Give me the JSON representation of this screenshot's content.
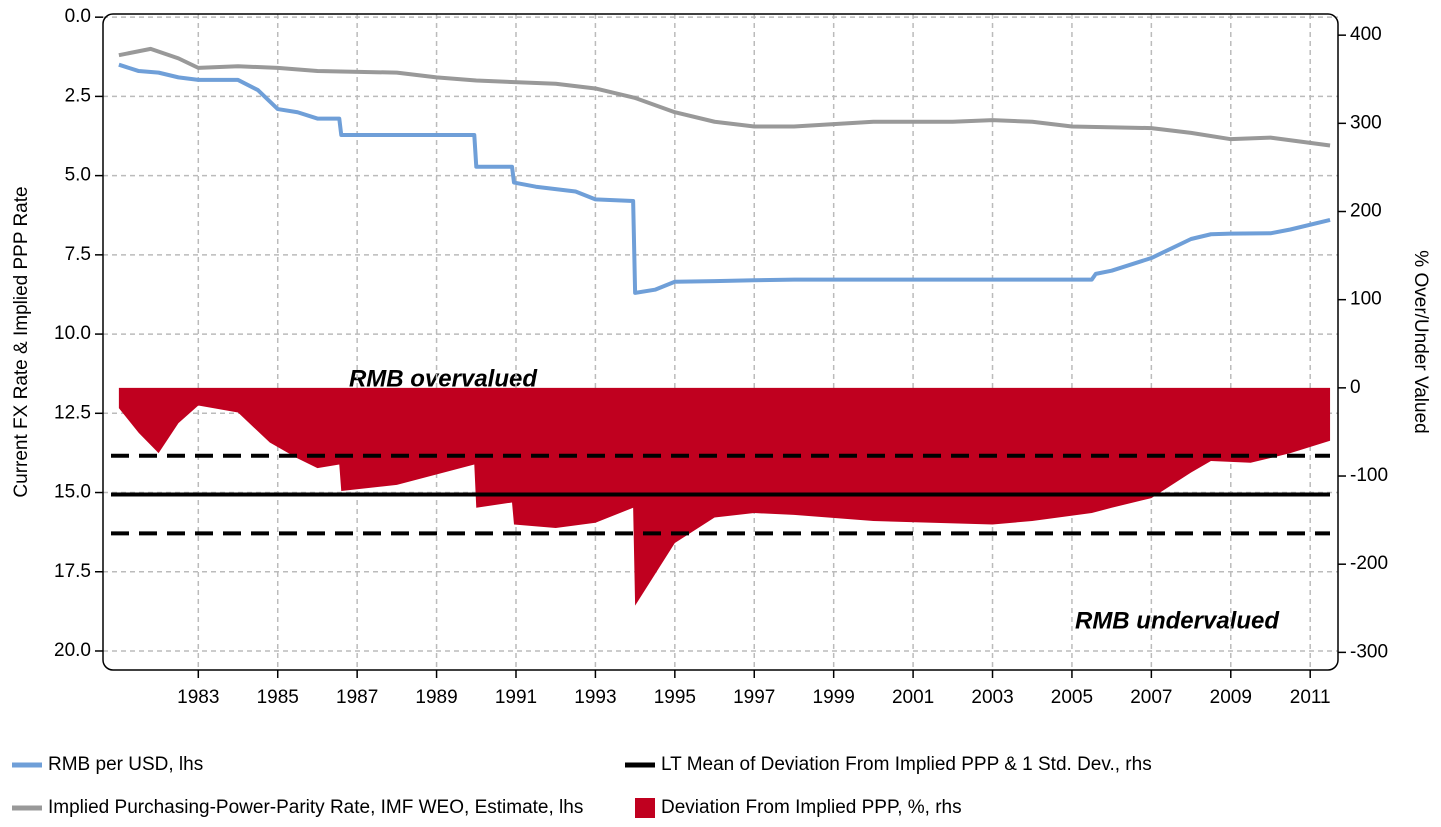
{
  "chart_data": {
    "type": "line",
    "y_axis_label": "Current FX Rate & Implied PPP Rate",
    "y2_axis_label": "% Over/Under Valued",
    "annotations": [
      "RMB overvalued",
      "RMB undervalued"
    ],
    "xlim": [
      1980.6,
      2011.7
    ],
    "xticks": [
      1983,
      1985,
      1987,
      1989,
      1991,
      1993,
      1995,
      1997,
      1999,
      2001,
      2003,
      2005,
      2007,
      2009,
      2011
    ],
    "ylim": [
      20.6,
      -0.1
    ],
    "yticks": [
      {
        "value": 0,
        "label": "0.0"
      },
      2.5,
      {
        "value": 5,
        "label": "5.0"
      },
      7.5,
      {
        "value": 10,
        "label": "10.0"
      },
      12.5,
      {
        "value": 15,
        "label": "15.0"
      },
      17.5,
      {
        "value": 20,
        "label": "20.0"
      }
    ],
    "y2lim": [
      -320,
      424
    ],
    "y2ticks": [
      400,
      300,
      200,
      100,
      0,
      -100,
      -200,
      -300
    ],
    "grid": true,
    "legend": "bottom",
    "series": [
      {
        "name": "RMB per USD, lhs",
        "color": "#6f9fd8",
        "axis": "y",
        "x": [
          1981.0,
          1981.5,
          1982.0,
          1982.5,
          1983.0,
          1984.0,
          1984.5,
          1985.0,
          1985.5,
          1986.0,
          1986.55,
          1986.6,
          1989.95,
          1990.0,
          1990.9,
          1990.95,
          1991.5,
          1992.5,
          1993.0,
          1993.95,
          1994.0,
          1994.5,
          1995.0,
          1996.0,
          1997.0,
          1998.0,
          2005.5,
          2005.6,
          2006.0,
          2007.0,
          2008.0,
          2008.5,
          2009.0,
          2010.0,
          2010.5,
          2011.5
        ],
        "values": [
          1.5,
          1.7,
          1.75,
          1.9,
          1.98,
          1.98,
          2.3,
          2.9,
          3.0,
          3.2,
          3.2,
          3.72,
          3.72,
          4.72,
          4.72,
          5.22,
          5.35,
          5.5,
          5.75,
          5.8,
          8.7,
          8.6,
          8.35,
          8.33,
          8.3,
          8.28,
          8.28,
          8.1,
          8.0,
          7.6,
          7.0,
          6.85,
          6.83,
          6.82,
          6.7,
          6.4
        ]
      },
      {
        "name": "Implied Purchasing-Power-Parity Rate, IMF WEO, Estimate, lhs",
        "color": "#999999",
        "axis": "y",
        "x": [
          1981.0,
          1981.8,
          1982.5,
          1983.0,
          1984.0,
          1985.0,
          1986.0,
          1988.0,
          1989.0,
          1990.0,
          1992.0,
          1993.0,
          1994.0,
          1995.0,
          1996.0,
          1997.0,
          1998.0,
          2000.0,
          2002.0,
          2003.0,
          2004.0,
          2005.0,
          2007.0,
          2008.0,
          2009.0,
          2010.0,
          2011.5
        ],
        "values": [
          1.2,
          1.0,
          1.3,
          1.6,
          1.55,
          1.6,
          1.7,
          1.75,
          1.9,
          2.0,
          2.1,
          2.25,
          2.55,
          3.0,
          3.3,
          3.45,
          3.45,
          3.3,
          3.3,
          3.25,
          3.3,
          3.45,
          3.5,
          3.65,
          3.85,
          3.8,
          4.05
        ]
      },
      {
        "name": "LT Mean of Deviation From Implied PPP & 1 Std. Dev., rhs",
        "color": "#000000",
        "axis": "y2",
        "type": "hline",
        "values": [
          -77,
          -121,
          -165
        ],
        "styles": [
          "dashed",
          "solid",
          "dashed"
        ]
      },
      {
        "name": "Deviation From Implied PPP, %, rhs",
        "color": "#c0001f",
        "axis": "y2",
        "type": "area",
        "x": [
          1981.0,
          1981.5,
          1982.0,
          1982.5,
          1983.0,
          1984.0,
          1984.8,
          1985.5,
          1986.0,
          1986.55,
          1986.6,
          1988.0,
          1989.95,
          1990.0,
          1990.9,
          1990.95,
          1992.0,
          1993.0,
          1993.95,
          1994.0,
          1995.0,
          1996.0,
          1997.0,
          1998.0,
          2000.0,
          2003.0,
          2004.0,
          2005.5,
          2006.0,
          2007.0,
          2008.0,
          2008.5,
          2009.5,
          2010.5,
          2011.5
        ],
        "values": [
          -23,
          -51,
          -74,
          -40,
          -20,
          -28,
          -62,
          -80,
          -91,
          -87,
          -117,
          -110,
          -87,
          -136,
          -130,
          -155,
          -159,
          -153,
          -136,
          -247,
          -176,
          -147,
          -142,
          -144,
          -151,
          -155,
          -151,
          -142,
          -136,
          -125,
          -96,
          -83,
          -85,
          -74,
          -60
        ]
      }
    ]
  }
}
